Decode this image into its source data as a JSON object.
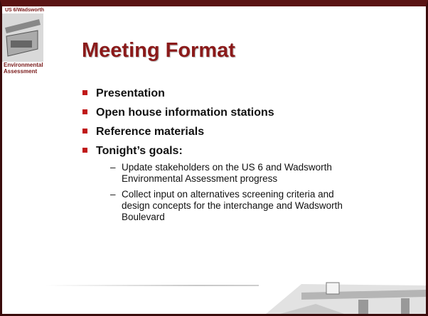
{
  "logo": {
    "top_text": "US 6/Wadsworth",
    "bottom_lines": [
      "Environmental",
      "Assessment"
    ]
  },
  "title": "Meeting Format",
  "bullets": [
    {
      "text": "Presentation"
    },
    {
      "text": "Open house information stations"
    },
    {
      "text": "Reference materials"
    },
    {
      "text": "Tonight’s goals:",
      "subitems": [
        "Update stakeholders on the US 6 and Wadsworth Environmental Assessment progress",
        "Collect input on alternatives screening criteria and design concepts for the interchange and Wadsworth Boulevard"
      ]
    }
  ]
}
